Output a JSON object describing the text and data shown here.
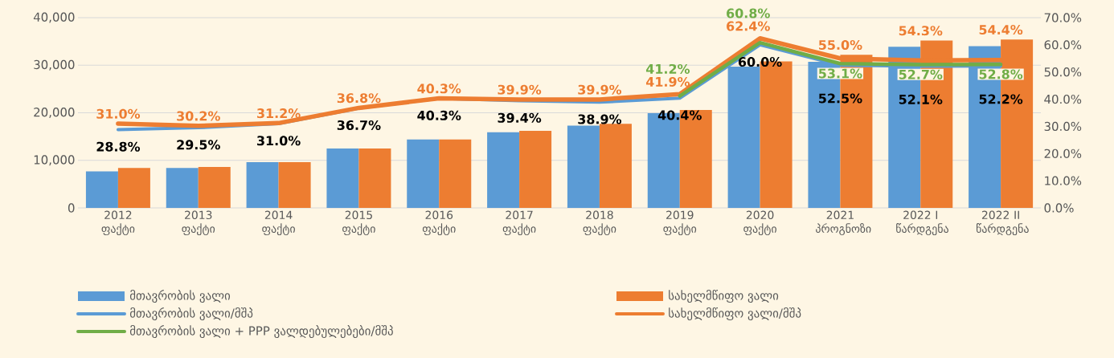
{
  "chart_data": {
    "type": "bar",
    "categories": [
      "2012 ფაქტი",
      "2013 ფაქტი",
      "2014 ფაქტი",
      "2015 ფაქტი",
      "2016 ფაქტი",
      "2017 ფაქტი",
      "2018 ფაქტი",
      "2019 ფაქტი",
      "2020 ფაქტი",
      "2021 პროგნოზი",
      "2022 I წარდგენა",
      "2022 II წარდგენა"
    ],
    "series": [
      {
        "name": "მთავრობის ვალი",
        "color": "#5B9BD5",
        "values": [
          7700,
          8400,
          9600,
          12500,
          14400,
          15900,
          17300,
          19900,
          29700,
          30700,
          33900,
          34000
        ]
      },
      {
        "name": "სახელმწიფო ვალი",
        "color": "#ED7D31",
        "values": [
          8400,
          8600,
          9600,
          12500,
          14400,
          16200,
          17700,
          20600,
          30800,
          32200,
          35200,
          35400
        ]
      },
      {
        "name": "მთავრობის ვალი/მშპ",
        "type": "line",
        "axis": "y2",
        "color": "#5B9BD5",
        "values": [
          28.8,
          29.5,
          31.0,
          36.7,
          40.3,
          39.4,
          38.9,
          40.4,
          60.0,
          52.5,
          52.1,
          52.2
        ],
        "value_labels": [
          "28.8%",
          "29.5%",
          "31.0%",
          "36.7%",
          "40.3%",
          "39.4%",
          "38.9%",
          "40.4%",
          "60.0%",
          "52.5%",
          "52.1%",
          "52.2%"
        ]
      },
      {
        "name": "სახელმწიფო ვალი/მშპ",
        "type": "line",
        "axis": "y2",
        "color": "#ED7D31",
        "values": [
          31.0,
          30.2,
          31.2,
          36.8,
          40.3,
          39.9,
          39.9,
          41.9,
          62.4,
          55.0,
          54.3,
          54.4
        ],
        "value_labels": [
          "31.0%",
          "30.2%",
          "31.2%",
          "36.8%",
          "40.3%",
          "39.9%",
          "39.9%",
          "41.9%",
          "62.4%",
          "55.0%",
          "54.3%",
          "54.4%"
        ]
      },
      {
        "name": "მთავრობის ვალი + PPP ვალდებულებები/მშპ",
        "type": "line",
        "axis": "y2",
        "color": "#70AD47",
        "values": [
          null,
          null,
          null,
          null,
          null,
          null,
          null,
          41.2,
          60.8,
          53.1,
          52.7,
          52.8
        ],
        "value_labels": [
          null,
          null,
          null,
          null,
          null,
          null,
          null,
          "41.2%",
          "60.8%",
          "53.1%",
          "52.7%",
          "52.8%"
        ]
      }
    ],
    "ylim": [
      0,
      40000
    ],
    "yticks": [
      0,
      {
        "value": 10000,
        "label": "10,000"
      },
      {
        "value": 20000,
        "label": "20,000"
      },
      {
        "value": 30000,
        "label": "30,000"
      },
      {
        "value": 40000,
        "label": "40,000"
      }
    ],
    "y2lim": [
      0,
      70
    ],
    "y2ticks": [
      {
        "value": 0,
        "label": "0.0%"
      },
      {
        "value": 10,
        "label": "10.0%"
      },
      {
        "value": 20,
        "label": "20.0%"
      },
      {
        "value": 30,
        "label": "30.0%"
      },
      {
        "value": 40,
        "label": "40.0%"
      },
      {
        "value": 50,
        "label": "50.0%"
      },
      {
        "value": 60,
        "label": "60.0%"
      },
      {
        "value": 70,
        "label": "70.0%"
      }
    ],
    "grid": "y",
    "legend": "bottom"
  }
}
